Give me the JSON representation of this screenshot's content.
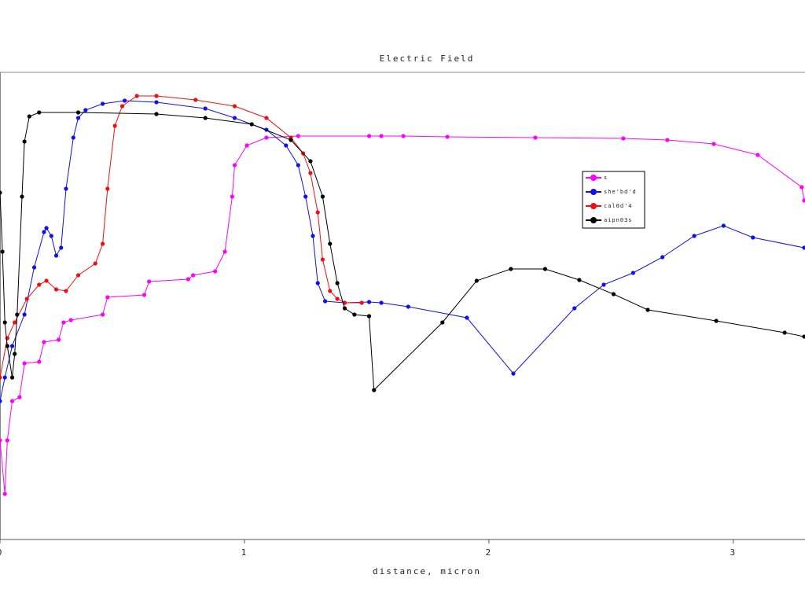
{
  "chart_data": {
    "type": "line",
    "title": "Electric Field",
    "x_label": "distance, micron",
    "xlim": [
      0,
      3.29
    ],
    "xticks": [
      0,
      1,
      2,
      3
    ],
    "ylim": [
      0,
      594
    ],
    "series": [
      {
        "name": "s",
        "color": "#ff00ff",
        "x": [
          0,
          0.02,
          0.03,
          0.05,
          0.08,
          0.1,
          0.16,
          0.18,
          0.24,
          0.26,
          0.29,
          0.42,
          0.44,
          0.59,
          0.61,
          0.77,
          0.79,
          0.88,
          0.92,
          0.95,
          0.96,
          1.01,
          1.09,
          1.22,
          1.51,
          1.56,
          1.65,
          1.83,
          2.19,
          2.55,
          2.73,
          2.92,
          3.1,
          3.28,
          3.29
        ],
        "values": [
          126,
          58,
          126,
          176,
          181,
          224,
          226,
          251,
          254,
          276,
          279,
          286,
          308,
          311,
          328,
          331,
          336,
          341,
          366,
          436,
          476,
          501,
          511,
          513,
          513,
          513,
          513,
          512,
          511,
          510,
          508,
          503,
          489,
          448,
          431
        ]
      },
      {
        "name": "she'bd'd",
        "color": "#1010ee",
        "x": [
          0,
          0.02,
          0.05,
          0.1,
          0.14,
          0.18,
          0.19,
          0.21,
          0.23,
          0.25,
          0.27,
          0.3,
          0.32,
          0.35,
          0.42,
          0.51,
          0.64,
          0.84,
          0.96,
          1.09,
          1.17,
          1.22,
          1.25,
          1.28,
          1.3,
          1.33,
          1.41,
          1.51,
          1.56,
          1.67,
          1.91,
          2.1,
          2.35,
          2.47,
          2.59,
          2.71,
          2.84,
          2.96,
          3.08,
          3.29
        ],
        "values": [
          176,
          206,
          246,
          286,
          346,
          391,
          396,
          386,
          361,
          371,
          446,
          511,
          536,
          546,
          554,
          558,
          556,
          548,
          536,
          521,
          501,
          476,
          436,
          386,
          326,
          303,
          301,
          302,
          301,
          296,
          282,
          211,
          294,
          324,
          339,
          359,
          386,
          399,
          384,
          371
        ]
      },
      {
        "name": "cal0d'4",
        "color": "#ee1010",
        "x": [
          0,
          0.03,
          0.06,
          0.11,
          0.16,
          0.19,
          0.23,
          0.27,
          0.32,
          0.39,
          0.42,
          0.44,
          0.47,
          0.5,
          0.56,
          0.64,
          0.8,
          0.96,
          1.09,
          1.19,
          1.24,
          1.27,
          1.3,
          1.32,
          1.35,
          1.38,
          1.41,
          1.48
        ],
        "values": [
          206,
          256,
          276,
          306,
          324,
          329,
          318,
          316,
          336,
          351,
          376,
          446,
          526,
          551,
          564,
          564,
          559,
          551,
          536,
          511,
          491,
          466,
          416,
          356,
          316,
          306,
          301,
          301
        ]
      },
      {
        "name": "aipn03s",
        "color": "#000000",
        "x": [
          0,
          0.01,
          0.02,
          0.03,
          0.05,
          0.06,
          0.07,
          0.09,
          0.1,
          0.12,
          0.16,
          0.32,
          0.64,
          0.84,
          1.03,
          1.19,
          1.27,
          1.32,
          1.35,
          1.38,
          1.41,
          1.45,
          1.51,
          1.53,
          1.81,
          1.95,
          2.09,
          2.23,
          2.37,
          2.51,
          2.65,
          2.93,
          3.21,
          3.29
        ],
        "values": [
          441,
          366,
          276,
          246,
          206,
          236,
          286,
          436,
          506,
          538,
          543,
          543,
          541,
          536,
          528,
          508,
          481,
          436,
          376,
          326,
          294,
          286,
          284,
          190,
          276,
          329,
          344,
          344,
          330,
          312,
          292,
          278,
          263,
          258
        ]
      }
    ]
  }
}
